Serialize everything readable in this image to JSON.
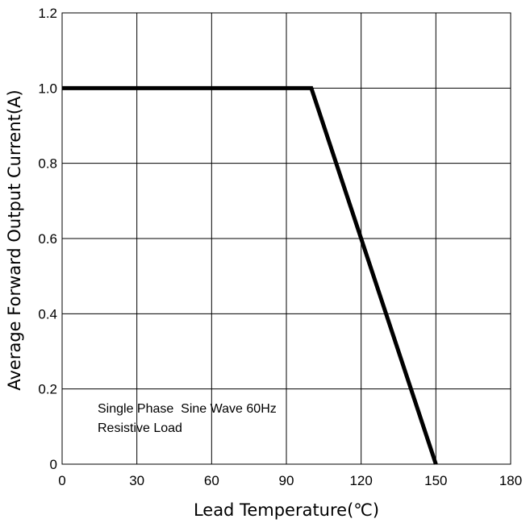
{
  "chart_data": {
    "type": "line",
    "xlabel": "Lead Temperature(℃)",
    "ylabel": "Average Forward Output Current(A)",
    "x_ticks": [
      "0",
      "30",
      "60",
      "90",
      "120",
      "150",
      "180"
    ],
    "y_ticks": [
      "0",
      "0.2",
      "0.4",
      "0.6",
      "0.8",
      "1.0",
      "1.2"
    ],
    "xlim": [
      0,
      180
    ],
    "ylim": [
      0,
      1.2
    ],
    "grid": true,
    "series": [
      {
        "x": [
          0,
          100,
          150
        ],
        "y": [
          1.0,
          1.0,
          0.0
        ],
        "color": "#000000"
      }
    ],
    "annotations": [
      "Single Phase  Sine Wave 60Hz",
      "Resistive Load"
    ]
  }
}
